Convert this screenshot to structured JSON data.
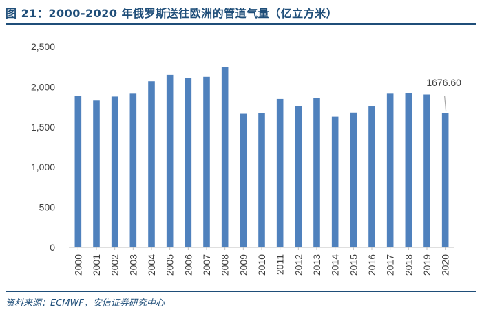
{
  "header": {
    "title": "图 21：2000-2020 年俄罗斯送往欧洲的管道气量（亿立方米）"
  },
  "footer": {
    "source": "资料来源：ECMWF，安信证券研究中心"
  },
  "colors": {
    "bar": "#4f81bd",
    "title": "#1f4e79",
    "axis_text": "#404040",
    "annotation_line": "#a6a6a6"
  },
  "chart_data": {
    "type": "bar",
    "title": "2000-2020 年俄罗斯送往欧洲的管道气量（亿立方米）",
    "xlabel": "",
    "ylabel": "",
    "ylim": [
      0,
      2500
    ],
    "yticks": [
      0,
      500,
      1000,
      1500,
      2000,
      2500
    ],
    "ytick_labels": [
      "0",
      "500",
      "1,000",
      "1,500",
      "2,000",
      "2,500"
    ],
    "grid": false,
    "legend": false,
    "categories": [
      "2000",
      "2001",
      "2002",
      "2003",
      "2004",
      "2005",
      "2006",
      "2007",
      "2008",
      "2009",
      "2010",
      "2011",
      "2012",
      "2013",
      "2014",
      "2015",
      "2016",
      "2017",
      "2018",
      "2019",
      "2020"
    ],
    "values": [
      1890,
      1830,
      1880,
      1915,
      2070,
      2150,
      2110,
      2125,
      2250,
      1665,
      1670,
      1850,
      1760,
      1865,
      1630,
      1680,
      1755,
      1915,
      1925,
      1905,
      1676.6
    ],
    "annotations": [
      {
        "category": "2020",
        "text": "1676.60"
      }
    ]
  }
}
